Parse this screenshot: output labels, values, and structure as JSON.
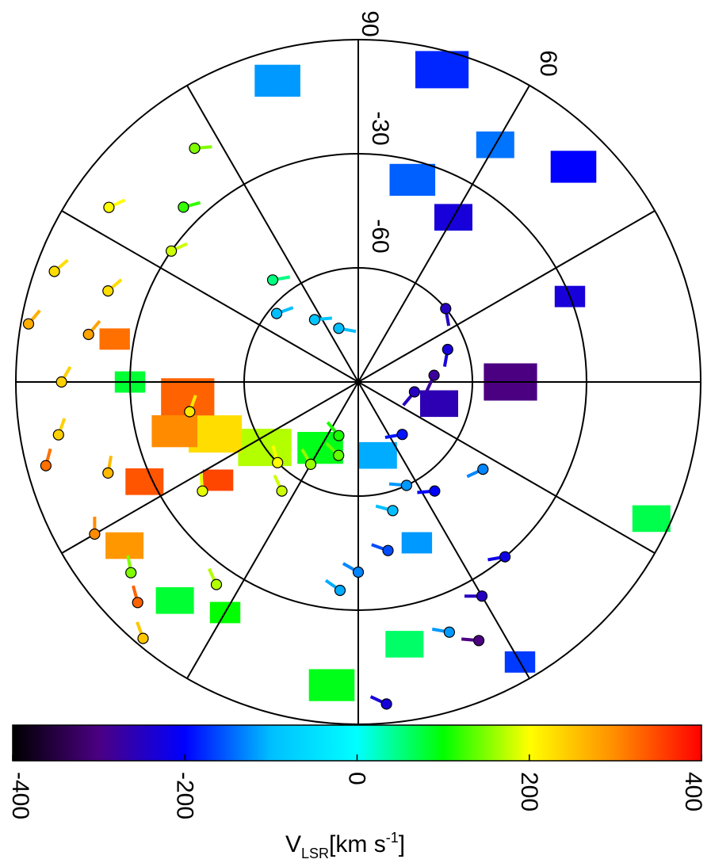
{
  "chart_data": {
    "type": "scatter",
    "projection": "polar",
    "coordinates": "galactic longitude (angular) / latitude (radial)",
    "grid": true,
    "radial_tick_labels": [
      "-60",
      "-30"
    ],
    "angular_tick_labels": [
      "90",
      "60"
    ],
    "colorbar": {
      "label_main": "V",
      "label_sub": "LSR",
      "label_units": "[km s",
      "label_exp": "-1",
      "label_close": "]",
      "range": [
        -400,
        400
      ],
      "tick_values": [
        -400,
        -200,
        0,
        200,
        400
      ],
      "tick_labels": [
        "-400",
        "-200",
        "0",
        "200",
        "400"
      ],
      "colormap": [
        "#000000",
        "#4b0082",
        "#0000ff",
        "#00bfff",
        "#00ffff",
        "#00ff00",
        "#ffff00",
        "#ff8c00",
        "#ff0000"
      ],
      "placement": "bottom"
    },
    "emission_regions": [
      {
        "lat": -50,
        "lon": 90,
        "width": 14,
        "velocity": -300
      },
      {
        "lat": -68,
        "lon": 75,
        "width": 10,
        "velocity": -260
      },
      {
        "lat": -30,
        "lon": 112,
        "width": 8,
        "velocity": -230
      },
      {
        "lat": -10,
        "lon": 135,
        "width": 12,
        "velocity": -200
      },
      {
        "lat": -5,
        "lon": 165,
        "width": 14,
        "velocity": -180
      },
      {
        "lat": -18,
        "lon": 150,
        "width": 10,
        "velocity": -140
      },
      {
        "lat": -40,
        "lon": 150,
        "width": 10,
        "velocity": -230
      },
      {
        "lat": -35,
        "lon": 165,
        "width": 12,
        "velocity": -150
      },
      {
        "lat": -8,
        "lon": 195,
        "width": 12,
        "velocity": -120
      },
      {
        "lat": -70,
        "lon": 15,
        "width": 10,
        "velocity": -110
      },
      {
        "lat": -45,
        "lon": 20,
        "width": 8,
        "velocity": -120
      },
      {
        "lat": -20,
        "lon": 10,
        "width": 10,
        "velocity": 60
      },
      {
        "lat": -10,
        "lon": -5,
        "width": 12,
        "velocity": 90
      },
      {
        "lat": -5,
        "lon": 65,
        "width": 10,
        "velocity": 70
      },
      {
        "lat": -5,
        "lon": 30,
        "width": 8,
        "velocity": -170
      },
      {
        "lat": -70,
        "lon": -30,
        "width": 12,
        "velocity": 90
      },
      {
        "lat": -60,
        "lon": -55,
        "width": 14,
        "velocity": 170
      },
      {
        "lat": -50,
        "lon": -70,
        "width": 14,
        "velocity": 230
      },
      {
        "lat": -45,
        "lon": -85,
        "width": 14,
        "velocity": 330
      },
      {
        "lat": -40,
        "lon": -75,
        "width": 12,
        "velocity": 300
      },
      {
        "lat": -45,
        "lon": -55,
        "width": 8,
        "velocity": 350
      },
      {
        "lat": -28,
        "lon": -65,
        "width": 10,
        "velocity": 340
      },
      {
        "lat": -15,
        "lon": -55,
        "width": 10,
        "velocity": 290
      },
      {
        "lat": -25,
        "lon": -100,
        "width": 8,
        "velocity": 320
      },
      {
        "lat": -30,
        "lon": -90,
        "width": 8,
        "velocity": 80
      },
      {
        "lat": -15,
        "lon": -40,
        "width": 10,
        "velocity": 80
      },
      {
        "lat": -20,
        "lon": -30,
        "width": 8,
        "velocity": 100
      }
    ],
    "points": [
      {
        "lat": -75,
        "lon": 80,
        "velocity": -250
      },
      {
        "lat": -70,
        "lon": 95,
        "velocity": -280
      },
      {
        "lat": -65,
        "lon": 110,
        "velocity": -230
      },
      {
        "lat": -60,
        "lon": 130,
        "velocity": -250
      },
      {
        "lat": -72,
        "lon": 40,
        "velocity": -190
      },
      {
        "lat": -60,
        "lon": 25,
        "velocity": -120
      },
      {
        "lat": -55,
        "lon": 15,
        "velocity": -100
      },
      {
        "lat": -45,
        "lon": 10,
        "velocity": -160
      },
      {
        "lat": -40,
        "lon": 0,
        "velocity": -130
      },
      {
        "lat": -35,
        "lon": -5,
        "velocity": -110
      },
      {
        "lat": -55,
        "lon": 35,
        "velocity": -200
      },
      {
        "lat": -50,
        "lon": 55,
        "velocity": -130
      },
      {
        "lat": -30,
        "lon": 40,
        "velocity": -220
      },
      {
        "lat": -25,
        "lon": 30,
        "velocity": -250
      },
      {
        "lat": -15,
        "lon": 25,
        "velocity": -300
      },
      {
        "lat": -5,
        "lon": 5,
        "velocity": -230
      },
      {
        "lat": -20,
        "lon": 20,
        "velocity": -120
      },
      {
        "lat": -75,
        "lon": 200,
        "velocity": -100
      },
      {
        "lat": -70,
        "lon": 215,
        "velocity": -90
      },
      {
        "lat": -62,
        "lon": 230,
        "velocity": -100
      },
      {
        "lat": -55,
        "lon": 220,
        "velocity": 50
      },
      {
        "lat": -75,
        "lon": -20,
        "velocity": 110
      },
      {
        "lat": -70,
        "lon": -15,
        "velocity": 140
      },
      {
        "lat": -65,
        "lon": -30,
        "velocity": 160
      },
      {
        "lat": -60,
        "lon": -45,
        "velocity": 200
      },
      {
        "lat": -55,
        "lon": -35,
        "velocity": 180
      },
      {
        "lat": -45,
        "lon": -80,
        "velocity": 220
      },
      {
        "lat": -40,
        "lon": -55,
        "velocity": 190
      },
      {
        "lat": -30,
        "lon": -125,
        "velocity": 180
      },
      {
        "lat": -25,
        "lon": -135,
        "velocity": 120
      },
      {
        "lat": -10,
        "lon": -125,
        "velocity": 200
      },
      {
        "lat": -15,
        "lon": -145,
        "velocity": 150
      },
      {
        "lat": -20,
        "lon": -110,
        "velocity": 230
      },
      {
        "lat": -18,
        "lon": -100,
        "velocity": 280
      },
      {
        "lat": -5,
        "lon": -110,
        "velocity": 230
      },
      {
        "lat": -12,
        "lon": -90,
        "velocity": 240
      },
      {
        "lat": -10,
        "lon": -80,
        "velocity": 240
      },
      {
        "lat": -2,
        "lon": -100,
        "velocity": 270
      },
      {
        "lat": -5,
        "lon": -75,
        "velocity": 320
      },
      {
        "lat": -20,
        "lon": -70,
        "velocity": 260
      },
      {
        "lat": -10,
        "lon": -60,
        "velocity": 300
      },
      {
        "lat": -12,
        "lon": -50,
        "velocity": 150
      },
      {
        "lat": -8,
        "lon": -45,
        "velocity": 330
      },
      {
        "lat": -2,
        "lon": -40,
        "velocity": 250
      },
      {
        "lat": -25,
        "lon": -35,
        "velocity": 170
      }
    ]
  }
}
